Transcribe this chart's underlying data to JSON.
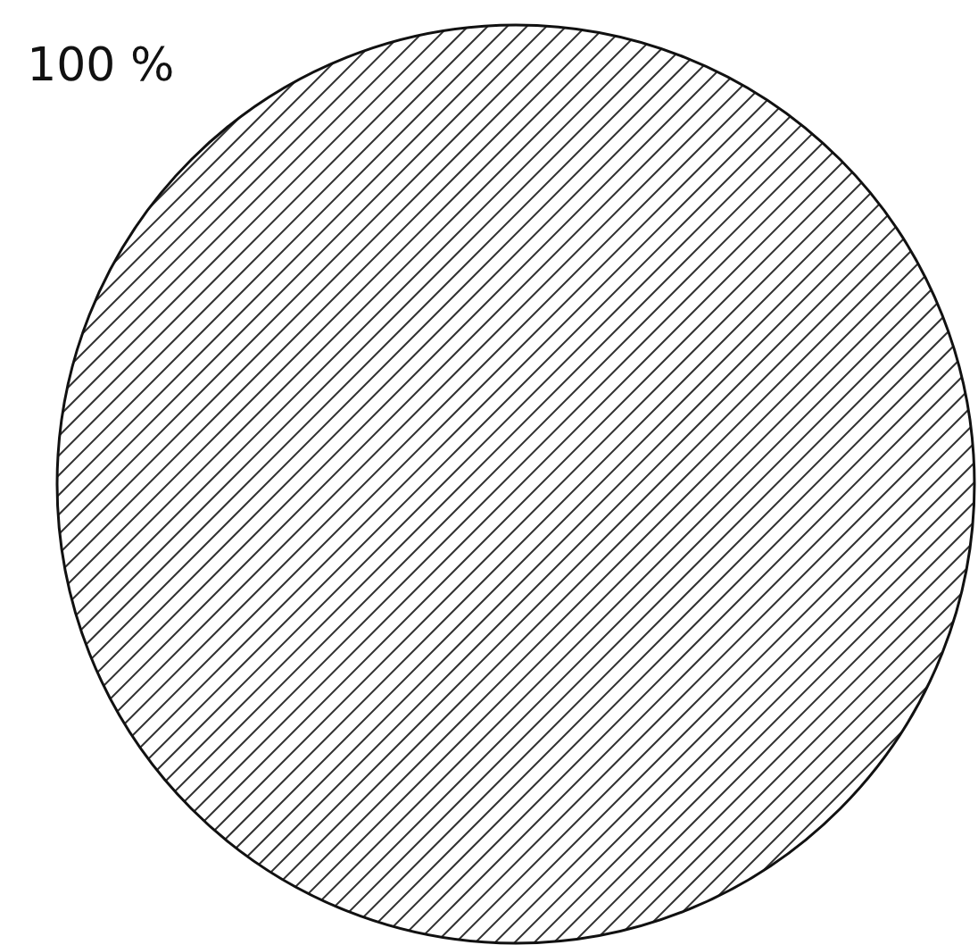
{
  "chart_data": {
    "type": "pie",
    "categories": [
      null
    ],
    "values": [
      100
    ],
    "colors": [
      "#ffffff"
    ],
    "value_labels": [
      "100 %"
    ],
    "legend": false
  }
}
